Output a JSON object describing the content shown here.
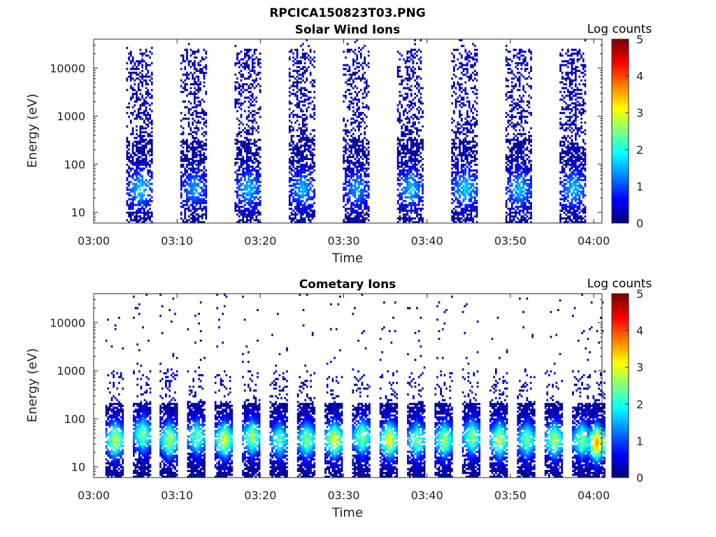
{
  "figure": {
    "title": "RPCICA150823T03.PNG"
  },
  "colorbar": {
    "label": "Log counts",
    "ticks": [
      "0",
      "1",
      "2",
      "3",
      "4",
      "5"
    ],
    "colormap": "jet",
    "range": [
      0,
      5
    ]
  },
  "chart_data": [
    {
      "type": "heatmap",
      "title": "Solar Wind Ions",
      "xlabel": "Time",
      "ylabel": "Energy (eV)",
      "yscale": "log",
      "x_ticks": [
        "03:00",
        "03:10",
        "03:20",
        "03:30",
        "03:40",
        "03:50",
        "04:00"
      ],
      "y_ticks": [
        "10",
        "100",
        "1000",
        "10000"
      ],
      "xlim": [
        "03:00",
        "04:01"
      ],
      "ylim": [
        6,
        40000
      ],
      "scan_times_min": [
        5.5,
        12.0,
        18.5,
        25.0,
        31.5,
        38.0,
        44.5,
        51.0,
        57.5
      ],
      "scans": [
        {
          "peak_energy_eV": 30,
          "peak_log_counts": 1.6
        },
        {
          "peak_energy_eV": 30,
          "peak_log_counts": 1.3
        },
        {
          "peak_energy_eV": 30,
          "peak_log_counts": 1.5
        },
        {
          "peak_energy_eV": 30,
          "peak_log_counts": 1.4
        },
        {
          "peak_energy_eV": 30,
          "peak_log_counts": 1.3
        },
        {
          "peak_energy_eV": 30,
          "peak_log_counts": 1.5
        },
        {
          "peak_energy_eV": 30,
          "peak_log_counts": 1.6
        },
        {
          "peak_energy_eV": 30,
          "peak_log_counts": 1.5
        },
        {
          "peak_energy_eV": 30,
          "peak_log_counts": 1.5
        }
      ],
      "colorbar_label": "Log counts",
      "clim": [
        0,
        5
      ],
      "grid": false
    },
    {
      "type": "heatmap",
      "title": "Cometary Ions",
      "xlabel": "Time",
      "ylabel": "Energy (eV)",
      "yscale": "log",
      "x_ticks": [
        "03:00",
        "03:10",
        "03:20",
        "03:30",
        "03:40",
        "03:50",
        "04:00"
      ],
      "y_ticks": [
        "10",
        "100",
        "1000",
        "10000"
      ],
      "xlim": [
        "03:00",
        "04:01"
      ],
      "ylim": [
        6,
        40000
      ],
      "scan_times_min": [
        2.5,
        5.8,
        9.0,
        12.3,
        15.6,
        18.9,
        22.2,
        25.5,
        28.8,
        32.1,
        35.4,
        38.7,
        42.0,
        45.3,
        48.6,
        51.9,
        55.2,
        58.5,
        60.3
      ],
      "scans": [
        {
          "peak_energy_eV": 35,
          "peak_log_counts": 2.8
        },
        {
          "peak_energy_eV": 45,
          "peak_log_counts": 2.4
        },
        {
          "peak_energy_eV": 35,
          "peak_log_counts": 2.7
        },
        {
          "peak_energy_eV": 40,
          "peak_log_counts": 2.3
        },
        {
          "peak_energy_eV": 35,
          "peak_log_counts": 2.9
        },
        {
          "peak_energy_eV": 40,
          "peak_log_counts": 2.6
        },
        {
          "peak_energy_eV": 35,
          "peak_log_counts": 2.2
        },
        {
          "peak_energy_eV": 35,
          "peak_log_counts": 2.5
        },
        {
          "peak_energy_eV": 35,
          "peak_log_counts": 3.0
        },
        {
          "peak_energy_eV": 40,
          "peak_log_counts": 2.5
        },
        {
          "peak_energy_eV": 35,
          "peak_log_counts": 3.1
        },
        {
          "peak_energy_eV": 35,
          "peak_log_counts": 2.4
        },
        {
          "peak_energy_eV": 35,
          "peak_log_counts": 2.6
        },
        {
          "peak_energy_eV": 40,
          "peak_log_counts": 2.5
        },
        {
          "peak_energy_eV": 35,
          "peak_log_counts": 2.8
        },
        {
          "peak_energy_eV": 35,
          "peak_log_counts": 2.4
        },
        {
          "peak_energy_eV": 35,
          "peak_log_counts": 2.7
        },
        {
          "peak_energy_eV": 35,
          "peak_log_counts": 2.5
        },
        {
          "peak_energy_eV": 30,
          "peak_log_counts": 3.6
        }
      ],
      "colorbar_label": "Log counts",
      "clim": [
        0,
        5
      ],
      "grid": false
    }
  ]
}
